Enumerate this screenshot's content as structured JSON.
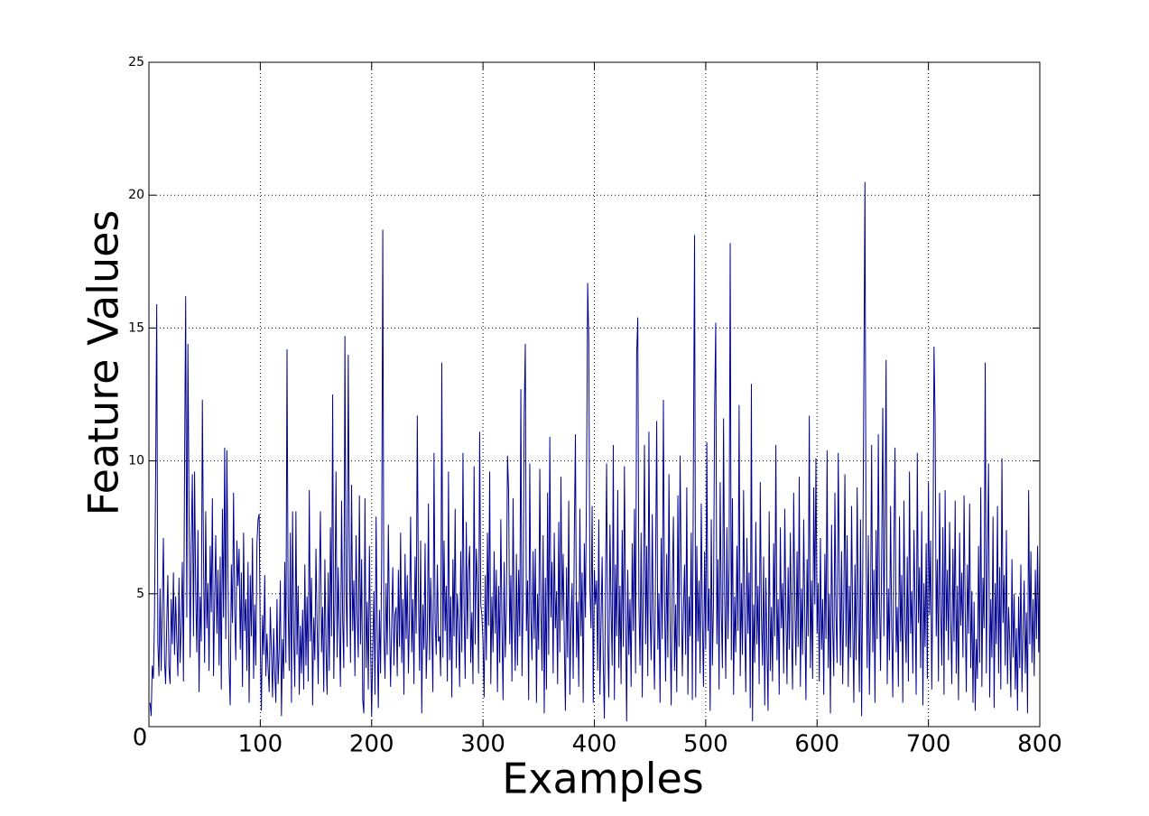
{
  "chart_data": {
    "type": "line",
    "x_label": "Examples",
    "y_label": "Feature Values",
    "color": "#00008f",
    "grid": true,
    "xlim": [
      0,
      800
    ],
    "xticks": [
      0,
      100,
      200,
      300,
      400,
      500,
      600,
      700,
      800
    ],
    "ylim": [
      0,
      25
    ],
    "yticks": [
      5,
      10,
      15,
      20,
      25
    ],
    "x": [
      1,
      2,
      3,
      4,
      5,
      6,
      7,
      8,
      9,
      10,
      11,
      12,
      13,
      14,
      15,
      16,
      17,
      18,
      19,
      20,
      21,
      22,
      23,
      24,
      25,
      26,
      27,
      28,
      29,
      30,
      31,
      32,
      33,
      34,
      35,
      36,
      37,
      38,
      39,
      40,
      41,
      42,
      43,
      44,
      45,
      46,
      47,
      48,
      49,
      50,
      51,
      52,
      53,
      54,
      55,
      56,
      57,
      58,
      59,
      60,
      61,
      62,
      63,
      64,
      65,
      66,
      67,
      68,
      69,
      70,
      71,
      72,
      73,
      74,
      75,
      76,
      77,
      78,
      79,
      80,
      81,
      82,
      83,
      84,
      85,
      86,
      87,
      88,
      89,
      90,
      91,
      92,
      93,
      94,
      95,
      96,
      97,
      98,
      99,
      100,
      101,
      102,
      103,
      104,
      105,
      106,
      107,
      108,
      109,
      110,
      111,
      112,
      113,
      114,
      115,
      116,
      117,
      118,
      119,
      120,
      121,
      122,
      123,
      124,
      125,
      126,
      127,
      128,
      129,
      130,
      131,
      132,
      133,
      134,
      135,
      136,
      137,
      138,
      139,
      140,
      141,
      142,
      143,
      144,
      145,
      146,
      147,
      148,
      149,
      150,
      151,
      152,
      153,
      154,
      155,
      156,
      157,
      158,
      159,
      160,
      161,
      162,
      163,
      164,
      165,
      166,
      167,
      168,
      169,
      170,
      171,
      172,
      173,
      174,
      175,
      176,
      177,
      178,
      179,
      180,
      181,
      182,
      183,
      184,
      185,
      186,
      187,
      188,
      189,
      190,
      191,
      192,
      193,
      194,
      195,
      196,
      197,
      198,
      199,
      200,
      201,
      202,
      203,
      204,
      205,
      206,
      207,
      208,
      209,
      210,
      211,
      212,
      213,
      214,
      215,
      216,
      217,
      218,
      219,
      220,
      221,
      222,
      223,
      224,
      225,
      226,
      227,
      228,
      229,
      230,
      231,
      232,
      233,
      234,
      235,
      236,
      237,
      238,
      239,
      240,
      241,
      242,
      243,
      244,
      245,
      246,
      247,
      248,
      249,
      250,
      251,
      252,
      253,
      254,
      255,
      256,
      257,
      258,
      259,
      260,
      261,
      262,
      263,
      264,
      265,
      266,
      267,
      268,
      269,
      270,
      271,
      272,
      273,
      274,
      275,
      276,
      277,
      278,
      279,
      280,
      281,
      282,
      283,
      284,
      285,
      286,
      287,
      288,
      289,
      290,
      291,
      292,
      293,
      294,
      295,
      296,
      297,
      298,
      299,
      300,
      301,
      302,
      303,
      304,
      305,
      306,
      307,
      308,
      309,
      310,
      311,
      312,
      313,
      314,
      315,
      316,
      317,
      318,
      319,
      320,
      321,
      322,
      323,
      324,
      325,
      326,
      327,
      328,
      329,
      330,
      331,
      332,
      333,
      334,
      335,
      336,
      337,
      338,
      339,
      340,
      341,
      342,
      343,
      344,
      345,
      346,
      347,
      348,
      349,
      350,
      351,
      352,
      353,
      354,
      355,
      356,
      357,
      358,
      359,
      360,
      361,
      362,
      363,
      364,
      365,
      366,
      367,
      368,
      369,
      370,
      371,
      372,
      373,
      374,
      375,
      376,
      377,
      378,
      379,
      380,
      381,
      382,
      383,
      384,
      385,
      386,
      387,
      388,
      389,
      390,
      391,
      392,
      393,
      394,
      395,
      396,
      397,
      398,
      399,
      400,
      401,
      402,
      403,
      404,
      405,
      406,
      407,
      408,
      409,
      410,
      411,
      412,
      413,
      414,
      415,
      416,
      417,
      418,
      419,
      420,
      421,
      422,
      423,
      424,
      425,
      426,
      427,
      428,
      429,
      430,
      431,
      432,
      433,
      434,
      435,
      436,
      437,
      438,
      439,
      440,
      441,
      442,
      443,
      444,
      445,
      446,
      447,
      448,
      449,
      450,
      451,
      452,
      453,
      454,
      455,
      456,
      457,
      458,
      459,
      460,
      461,
      462,
      463,
      464,
      465,
      466,
      467,
      468,
      469,
      470,
      471,
      472,
      473,
      474,
      475,
      476,
      477,
      478,
      479,
      480,
      481,
      482,
      483,
      484,
      485,
      486,
      487,
      488,
      489,
      490,
      491,
      492,
      493,
      494,
      495,
      496,
      497,
      498,
      499,
      500,
      501,
      502,
      503,
      504,
      505,
      506,
      507,
      508,
      509,
      510,
      511,
      512,
      513,
      514,
      515,
      516,
      517,
      518,
      519,
      520,
      521,
      522,
      523,
      524,
      525,
      526,
      527,
      528,
      529,
      530,
      531,
      532,
      533,
      534,
      535,
      536,
      537,
      538,
      539,
      540,
      541,
      542,
      543,
      544,
      545,
      546,
      547,
      548,
      549,
      550,
      551,
      552,
      553,
      554,
      555,
      556,
      557,
      558,
      559,
      560,
      561,
      562,
      563,
      564,
      565,
      566,
      567,
      568,
      569,
      570,
      571,
      572,
      573,
      574,
      575,
      576,
      577,
      578,
      579,
      580,
      581,
      582,
      583,
      584,
      585,
      586,
      587,
      588,
      589,
      590,
      591,
      592,
      593,
      594,
      595,
      596,
      597,
      598,
      599,
      600,
      601,
      602,
      603,
      604,
      605,
      606,
      607,
      608,
      609,
      610,
      611,
      612,
      613,
      614,
      615,
      616,
      617,
      618,
      619,
      620,
      621,
      622,
      623,
      624,
      625,
      626,
      627,
      628,
      629,
      630,
      631,
      632,
      633,
      634,
      635,
      636,
      637,
      638,
      639,
      640,
      641,
      642,
      643,
      644,
      645,
      646,
      647,
      648,
      649,
      650,
      651,
      652,
      653,
      654,
      655,
      656,
      657,
      658,
      659,
      660,
      661,
      662,
      663,
      664,
      665,
      666,
      667,
      668,
      669,
      670,
      671,
      672,
      673,
      674,
      675,
      676,
      677,
      678,
      679,
      680,
      681,
      682,
      683,
      684,
      685,
      686,
      687,
      688,
      689,
      690,
      691,
      692,
      693,
      694,
      695,
      696,
      697,
      698,
      699,
      700,
      701,
      702,
      703,
      704,
      705,
      706,
      707,
      708,
      709,
      710,
      711,
      712,
      713,
      714,
      715,
      716,
      717,
      718,
      719,
      720,
      721,
      722,
      723,
      724,
      725,
      726,
      727,
      728,
      729,
      730,
      731,
      732,
      733,
      734,
      735,
      736,
      737,
      738,
      739,
      740,
      741,
      742,
      743,
      744,
      745,
      746,
      747,
      748,
      749,
      750,
      751,
      752,
      753,
      754,
      755,
      756,
      757,
      758,
      759,
      760,
      761,
      762,
      763,
      764,
      765,
      766,
      767,
      768,
      769,
      770,
      771,
      772,
      773,
      774,
      775,
      776,
      777,
      778,
      779,
      780,
      781,
      782,
      783,
      784,
      785,
      786,
      787,
      788,
      789,
      790,
      791,
      792,
      793,
      794,
      795,
      796,
      797,
      798,
      799,
      800
    ],
    "values": [
      0.9,
      0.4,
      2.3,
      1.8,
      4.1,
      9.3,
      15.9,
      3.2,
      1.9,
      5.2,
      2.1,
      4.6,
      7.1,
      2.5,
      1.6,
      3.9,
      5.7,
      2.2,
      1.6,
      4.8,
      3.1,
      5.8,
      2.7,
      4.9,
      3.3,
      1.9,
      5.6,
      2.4,
      3.8,
      6.2,
      1.7,
      9.8,
      16.2,
      4.1,
      14.4,
      8.3,
      2.6,
      6.9,
      9.5,
      3.4,
      9.6,
      5.1,
      2.8,
      7.4,
      1.3,
      4.9,
      3.2,
      12.3,
      6.5,
      2.4,
      8.1,
      3.7,
      5.4,
      2.1,
      6.8,
      4.3,
      8.6,
      1.9,
      4.7,
      7.2,
      3.5,
      5.9,
      2.3,
      6.4,
      1.4,
      8.2,
      4.1,
      10.5,
      3.3,
      10.4,
      5.6,
      2.2,
      0.8,
      6.1,
      3.9,
      8.8,
      4.4,
      2.5,
      7.0,
      5.3,
      6.7,
      2.9,
      5.8,
      1.5,
      7.3,
      3.6,
      4.8,
      2.1,
      6.2,
      0.9,
      5.7,
      3.4,
      7.1,
      1.8,
      4.6,
      2.3,
      6.9,
      7.8,
      8.0,
      3.1,
      0.6,
      4.2,
      2.7,
      5.7,
      1.9,
      3.5,
      2.2,
      1.3,
      4.5,
      2.8,
      1.1,
      3.7,
      2.0,
      0.9,
      4.8,
      1.6,
      2.9,
      5.5,
      0.4,
      3.3,
      1.8,
      6.2,
      2.4,
      14.2,
      4.6,
      2.1,
      7.3,
      0.9,
      8.1,
      3.4,
      1.5,
      8.1,
      2.7,
      5.3,
      1.2,
      3.8,
      2.0,
      4.4,
      1.4,
      6.1,
      2.3,
      4.9,
      1.7,
      8.9,
      3.2,
      5.6,
      0.8,
      4.1,
      2.5,
      6.7,
      3.9,
      1.6,
      5.2,
      8.1,
      2.8,
      4.5,
      1.3,
      6.3,
      3.0,
      1.2,
      5.8,
      2.1,
      7.5,
      3.4,
      12.5,
      1.8,
      4.6,
      9.6,
      2.6,
      6.0,
      3.7,
      1.5,
      8.5,
      4.0,
      2.2,
      14.7,
      5.1,
      3.0,
      14.0,
      6.8,
      2.4,
      9.1,
      3.6,
      5.5,
      1.9,
      7.2,
      4.2,
      2.6,
      8.7,
      3.1,
      6.3,
      1.0,
      0.5,
      8.6,
      2.2,
      4.7,
      1.4,
      6.8,
      3.2,
      0.4,
      2.9,
      5.1,
      1.2,
      7.9,
      3.6,
      0.7,
      4.4,
      2.0,
      6.3,
      18.7,
      3.5,
      1.8,
      5.4,
      2.7,
      7.6,
      4.1,
      1.5,
      3.9,
      6.0,
      2.3,
      4.2,
      4.5,
      1.9,
      5.9,
      3.0,
      7.3,
      2.4,
      4.8,
      1.2,
      6.5,
      3.3,
      5.7,
      2.0,
      4.2,
      7.9,
      2.8,
      4.8,
      1.6,
      6.4,
      3.5,
      11.7,
      5.1,
      2.1,
      7.0,
      0.5,
      4.6,
      2.9,
      6.9,
      1.8,
      3.4,
      8.4,
      2.5,
      5.6,
      3.8,
      1.3,
      10.3,
      4.0,
      2.7,
      6.1,
      3.2,
      3.4,
      1.9,
      13.7,
      2.6,
      7.0,
      3.6,
      5.3,
      1.7,
      9.6,
      2.5,
      4.9,
      1.1,
      6.3,
      3.4,
      8.2,
      2.2,
      5.0,
      3.9,
      1.5,
      6.6,
      2.8,
      10.3,
      4.5,
      1.8,
      7.7,
      3.3,
      5.9,
      6.8,
      2.4,
      4.3,
      1.6,
      9.8,
      3.1,
      6.7,
      5.4,
      2.0,
      11.1,
      4.6,
      4.2,
      3.2,
      1.1,
      5.7,
      2.5,
      7.3,
      3.8,
      9.6,
      1.6,
      4.9,
      2.8,
      6.6,
      3.5,
      5.9,
      1.3,
      5.3,
      2.4,
      7.8,
      3.9,
      1.0,
      6.2,
      2.6,
      4.4,
      10.2,
      8.9,
      3.1,
      5.7,
      1.7,
      8.6,
      4.0,
      2.1,
      6.5,
      2.3,
      5.9,
      3.4,
      12.7,
      1.9,
      4.7,
      11.8,
      14.4,
      3.6,
      5.5,
      1.0,
      9.9,
      4.2,
      2.5,
      6.6,
      3.3,
      6.7,
      0.9,
      5.0,
      2.9,
      9.7,
      4.4,
      2.1,
      7.2,
      0.5,
      5.6,
      1.4,
      8.8,
      2.7,
      10.9,
      4.1,
      6.2,
      2.0,
      7.3,
      3.7,
      5.1,
      1.6,
      7.7,
      2.8,
      9.4,
      4.0,
      6.5,
      3.2,
      0.6,
      6.0,
      2.6,
      8.5,
      1.2,
      3.9,
      5.4,
      1.8,
      7.1,
      11.0,
      2.6,
      4.7,
      1.5,
      8.2,
      3.4,
      5.8,
      0.9,
      6.9,
      4.1,
      9.3,
      16.7,
      14.5,
      5.2,
      3.7,
      8.3,
      0.9,
      5.9,
      4.6,
      5.5,
      2.1,
      7.8,
      1.2,
      3.9,
      6.4,
      2.4,
      0.3,
      5.1,
      9.9,
      3.2,
      1.1,
      7.6,
      4.5,
      2.3,
      10.6,
      1.0,
      6.1,
      3.4,
      8.9,
      2.2,
      5.3,
      1.6,
      7.4,
      3.0,
      9.8,
      4.3,
      0.2,
      5.9,
      2.7,
      4.8,
      1.5,
      6.9,
      3.6,
      8.2,
      2.0,
      14.0,
      15.4,
      4.7,
      2.3,
      7.3,
      1.1,
      5.6,
      10.6,
      3.1,
      6.8,
      1.9,
      11.1,
      4.4,
      2.5,
      8.0,
      3.7,
      1.4,
      6.2,
      11.5,
      2.9,
      5.0,
      0.9,
      7.1,
      3.3,
      12.3,
      4.8,
      1.7,
      6.5,
      2.6,
      9.5,
      3.9,
      0.8,
      5.4,
      7.9,
      2.1,
      4.6,
      1.3,
      8.7,
      3.0,
      10.2,
      5.7,
      1.9,
      4.4,
      6.1,
      2.7,
      9.0,
      1.2,
      4.9,
      3.4,
      7.3,
      1.0,
      10.4,
      18.5,
      1.1,
      6.8,
      3.2,
      5.5,
      2.0,
      8.4,
      4.1,
      1.5,
      6.6,
      2.9,
      10.7,
      3.6,
      5.2,
      0.6,
      7.8,
      2.3,
      4.7,
      12.0,
      15.2,
      3.1,
      6.3,
      1.4,
      9.2,
      4.4,
      2.2,
      11.6,
      5.0,
      1.8,
      7.5,
      3.3,
      6.0,
      18.2,
      2.5,
      8.6,
      1.2,
      4.9,
      2.8,
      6.8,
      3.6,
      12.1,
      1.9,
      5.4,
      2.7,
      8.9,
      4.0,
      1.3,
      7.1,
      3.5,
      5.8,
      0.7,
      12.9,
      0.2,
      4.6,
      2.4,
      7.7,
      3.1,
      5.3,
      1.6,
      9.2,
      4.2,
      2.3,
      6.4,
      0.8,
      5.6,
      3.0,
      0.6,
      8.1,
      2.1,
      4.5,
      1.7,
      6.9,
      3.4,
      10.6,
      2.5,
      4.8,
      1.2,
      7.5,
      3.7,
      5.4,
      2.0,
      8.2,
      4.3,
      1.6,
      6.0,
      2.9,
      7.3,
      3.6,
      1.4,
      8.8,
      4.7,
      2.3,
      6.6,
      3.0,
      9.4,
      1.5,
      5.2,
      2.7,
      7.8,
      4.1,
      1.0,
      6.3,
      3.4,
      11.7,
      2.2,
      5.5,
      1.8,
      9.0,
      4.6,
      10.1,
      3.5,
      5.4,
      1.7,
      7.1,
      2.9,
      4.8,
      1.2,
      6.5,
      3.3,
      10.4,
      2.2,
      5.0,
      0.5,
      7.6,
      3.8,
      1.9,
      8.8,
      4.2,
      2.4,
      10.3,
      5.8,
      2.3,
      6.6,
      1.6,
      4.7,
      9.5,
      3.0,
      7.2,
      1.5,
      5.3,
      2.6,
      8.3,
      3.9,
      0.9,
      6.1,
      2.5,
      9.0,
      4.4,
      1.3,
      7.8,
      0.4,
      5.7,
      13.0,
      20.5,
      6.5,
      2.2,
      7.2,
      1.2,
      4.4,
      10.6,
      2.8,
      5.9,
      0.9,
      7.4,
      3.3,
      11.0,
      4.9,
      2.1,
      6.4,
      12.0,
      3.4,
      7.8,
      13.8,
      1.6,
      5.2,
      2.5,
      8.3,
      3.7,
      1.1,
      6.9,
      10.5,
      2.8,
      4.5,
      1.5,
      7.9,
      3.2,
      5.7,
      0.9,
      8.5,
      4.0,
      2.4,
      6.4,
      1.7,
      9.6,
      3.5,
      5.1,
      2.0,
      7.4,
      4.6,
      1.2,
      10.3,
      3.9,
      6.0,
      2.2,
      8.1,
      0.8,
      5.4,
      3.0,
      6.9,
      1.8,
      9.2,
      4.2,
      7.0,
      1.4,
      5.7,
      14.3,
      11.6,
      3.4,
      6.3,
      1.7,
      8.8,
      4.5,
      2.3,
      7.5,
      1.2,
      8.9,
      3.6,
      5.9,
      2.5,
      7.7,
      4.0,
      1.6,
      6.7,
      3.2,
      8.5,
      2.0,
      5.3,
      1.0,
      7.3,
      3.8,
      5.8,
      2.6,
      8.7,
      4.4,
      1.3,
      6.1,
      3.5,
      8.4,
      2.2,
      5.1,
      0.9,
      4.7,
      0.6,
      3.3,
      1.8,
      6.8,
      2.4,
      9.0,
      1.5,
      5.6,
      3.7,
      13.7,
      2.0,
      6.2,
      9.9,
      1.1,
      4.8,
      2.6,
      7.9,
      0.7,
      5.4,
      3.1,
      8.3,
      2.0,
      6.0,
      1.4,
      10.1,
      3.9,
      5.7,
      2.3,
      7.4,
      1.6,
      4.5,
      3.2,
      1.1,
      6.3,
      2.6,
      5.0,
      1.4,
      3.7,
      0.6,
      4.9,
      2.2,
      6.1,
      1.3,
      3.6,
      5.5,
      2.0,
      4.3,
      0.5,
      8.9,
      3.1,
      6.6,
      2.4,
      4.8,
      1.9,
      5.9,
      3.3,
      6.8,
      2.8,
      6.7
    ]
  }
}
